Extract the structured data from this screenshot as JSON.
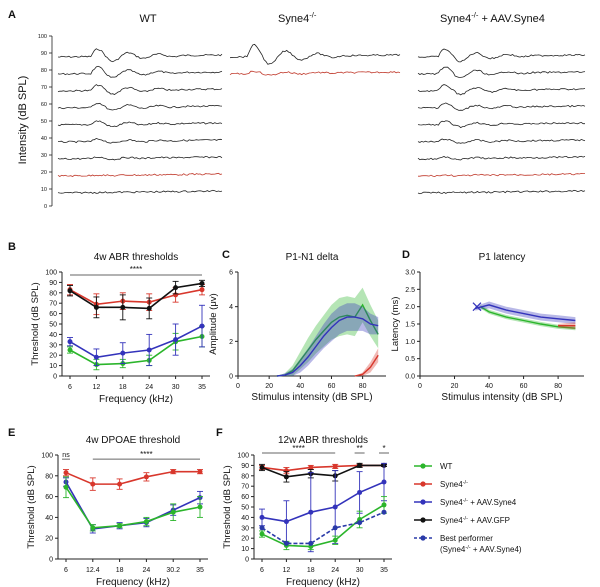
{
  "colors": {
    "wt": "#2bb52b",
    "syne4": "#d8372c",
    "aav_syne4": "#3333bb",
    "aav_gfp": "#111111",
    "best": "#2a3aa8",
    "trace": "#222222",
    "trace_red": "#c0392b"
  },
  "panel_labels": {
    "A": "A",
    "B": "B",
    "C": "C",
    "D": "D",
    "E": "E",
    "F": "F"
  },
  "panelA": {
    "col_titles": {
      "wt": "WT",
      "ko": "Syne4",
      "ko_sup": "-/-",
      "aav": "Syne4",
      "aav_sup": "-/-",
      "aav_suffix": " + AAV.Syne4"
    },
    "ylabel": "Intensity (dB SPL)",
    "ticks": [
      "100",
      "90",
      "80",
      "70",
      "60",
      "50",
      "40",
      "30",
      "20",
      "10",
      "0"
    ]
  },
  "chart_data": [
    {
      "id": "B",
      "type": "line",
      "title": "4w ABR thresholds",
      "xlabel": "Frequency (kHz)",
      "ylabel": "Threshold (dB SPL)",
      "ylim": [
        0,
        100
      ],
      "categories": [
        "6",
        "12",
        "18",
        "24",
        "30",
        "35"
      ],
      "yticks": [
        "0",
        "10",
        "20",
        "30",
        "40",
        "50",
        "60",
        "70",
        "80",
        "90",
        "100"
      ],
      "sig": "****",
      "series": [
        {
          "name": "WT",
          "color": "wt",
          "values": [
            25,
            11,
            12,
            15,
            33,
            38
          ],
          "err": [
            3,
            5,
            4,
            5,
            8,
            10
          ]
        },
        {
          "name": "Syne4-/-",
          "color": "syne4",
          "values": [
            83,
            69,
            72,
            71,
            78,
            83
          ],
          "err": [
            5,
            10,
            8,
            8,
            7,
            5
          ]
        },
        {
          "name": "Syne4-/- + AAV.GFP",
          "color": "aav_gfp",
          "values": [
            82,
            66,
            66,
            65,
            85,
            89
          ],
          "err": [
            5,
            10,
            12,
            10,
            6,
            3
          ]
        },
        {
          "name": "Syne4-/- + AAV.Syne4",
          "color": "aav_syne4",
          "values": [
            33,
            18,
            22,
            25,
            35,
            48
          ],
          "err": [
            4,
            8,
            10,
            15,
            15,
            20
          ]
        }
      ]
    },
    {
      "id": "C",
      "type": "area",
      "title": "P1-N1 delta",
      "xlabel": "Stimulus intensity (dB SPL)",
      "ylabel": "Amplitude (μv)",
      "xlim": [
        0,
        95
      ],
      "ylim": [
        0,
        6
      ],
      "xticks": [
        "0",
        "20",
        "40",
        "60",
        "80"
      ],
      "yticks": [
        "0",
        "2",
        "4",
        "6"
      ],
      "series": [
        {
          "name": "WT",
          "color": "wt",
          "x": [
            25,
            30,
            35,
            40,
            45,
            50,
            55,
            60,
            65,
            70,
            75,
            80,
            85,
            90
          ],
          "y": [
            0,
            0.05,
            0.3,
            0.9,
            1.5,
            2.1,
            2.6,
            3.1,
            3.4,
            3.5,
            3.4,
            4.1,
            3.2,
            2.4
          ],
          "band": [
            0,
            0.1,
            0.3,
            0.5,
            0.7,
            0.8,
            0.9,
            1.0,
            1.1,
            1.1,
            1.1,
            1.0,
            0.9,
            0.8
          ]
        },
        {
          "name": "Syne4-/- + AAV.Syne4",
          "color": "aav_syne4",
          "x": [
            25,
            30,
            35,
            40,
            45,
            50,
            55,
            60,
            65,
            70,
            75,
            80,
            85,
            90
          ],
          "y": [
            0,
            0.05,
            0.2,
            0.6,
            1.1,
            1.7,
            2.3,
            2.8,
            3.2,
            3.4,
            3.4,
            3.3,
            3.0,
            2.9
          ],
          "band": [
            0,
            0.1,
            0.2,
            0.4,
            0.5,
            0.6,
            0.7,
            0.8,
            0.8,
            0.8,
            0.8,
            0.7,
            0.6,
            0.5
          ]
        },
        {
          "name": "Syne4-/-",
          "color": "syne4",
          "x": [
            75,
            80,
            85,
            90
          ],
          "y": [
            0,
            0.1,
            0.5,
            1.2
          ],
          "band": [
            0,
            0.1,
            0.3,
            0.4
          ]
        }
      ]
    },
    {
      "id": "D",
      "type": "area",
      "title": "P1 latency",
      "xlabel": "Stimulus intensity (dB SPL)",
      "ylabel": "Latency (ms)",
      "xlim": [
        0,
        95
      ],
      "ylim": [
        0,
        3
      ],
      "xticks": [
        "0",
        "20",
        "40",
        "60",
        "80"
      ],
      "yticks": [
        "0.0",
        "0.5",
        "1.0",
        "1.5",
        "2.0",
        "2.5",
        "3.0"
      ],
      "series": [
        {
          "name": "WT",
          "color": "wt",
          "x": [
            35,
            40,
            50,
            60,
            70,
            80,
            90
          ],
          "y": [
            2.0,
            1.85,
            1.7,
            1.6,
            1.5,
            1.42,
            1.38
          ],
          "band": [
            0.05,
            0.06,
            0.06,
            0.06,
            0.06,
            0.06,
            0.06
          ]
        },
        {
          "name": "Syne4-/- + AAV.Syne4",
          "color": "aav_syne4",
          "x": [
            32,
            40,
            50,
            60,
            70,
            80,
            90
          ],
          "y": [
            1.95,
            2.05,
            1.9,
            1.8,
            1.7,
            1.65,
            1.6
          ],
          "band": [
            0.06,
            0.1,
            0.1,
            0.1,
            0.1,
            0.1,
            0.1
          ]
        },
        {
          "name": "Syne4-/-",
          "color": "syne4",
          "x": [
            80,
            85,
            90
          ],
          "y": [
            1.45,
            1.45,
            1.45
          ],
          "band": [
            0.05,
            0.08,
            0.1
          ]
        }
      ]
    },
    {
      "id": "E",
      "type": "line",
      "title": "4w DPOAE threshold",
      "xlabel": "Frequency (kHz)",
      "ylabel": "Threshold (dB SPL)",
      "ylim": [
        0,
        100
      ],
      "categories": [
        "6",
        "12.4",
        "18",
        "24",
        "30.2",
        "35"
      ],
      "yticks": [
        "0",
        "20",
        "40",
        "60",
        "80",
        "100"
      ],
      "sig": "****",
      "sig_ns": "ns",
      "series": [
        {
          "name": "Syne4-/-",
          "color": "syne4",
          "values": [
            83,
            72,
            72,
            79,
            84,
            84
          ],
          "err": [
            3,
            6,
            5,
            4,
            2,
            2
          ]
        },
        {
          "name": "Syne4-/- + AAV.Syne4",
          "color": "aav_syne4",
          "values": [
            74,
            29,
            32,
            35,
            47,
            59
          ],
          "err": [
            4,
            4,
            3,
            4,
            5,
            6
          ]
        },
        {
          "name": "WT",
          "color": "wt",
          "values": [
            69,
            30,
            32,
            36,
            45,
            50
          ],
          "err": [
            10,
            3,
            2,
            4,
            8,
            10
          ]
        }
      ]
    },
    {
      "id": "F",
      "type": "line",
      "title": "12w ABR thresholds",
      "xlabel": "Frequency (kHz)",
      "ylabel": "Threshold (dB SPL)",
      "ylim": [
        0,
        100
      ],
      "categories": [
        "6",
        "12",
        "18",
        "24",
        "30",
        "35"
      ],
      "yticks": [
        "0",
        "10",
        "20",
        "30",
        "40",
        "50",
        "60",
        "70",
        "80",
        "90",
        "100"
      ],
      "sig": [
        {
          "label": "****",
          "from": 0,
          "to": 3
        },
        {
          "label": "**",
          "from": 4,
          "to": 4
        },
        {
          "label": "*",
          "from": 5,
          "to": 5
        }
      ],
      "series": [
        {
          "name": "Syne4-/-",
          "color": "syne4",
          "values": [
            88,
            85,
            88,
            89,
            90,
            90
          ],
          "err": [
            2,
            3,
            2,
            2,
            1,
            1
          ]
        },
        {
          "name": "Syne4-/- + AAV.GFP",
          "color": "aav_gfp",
          "values": [
            88,
            79,
            82,
            80,
            90,
            90
          ],
          "err": [
            3,
            5,
            4,
            5,
            2,
            1
          ]
        },
        {
          "name": "Syne4-/- + AAV.Syne4",
          "color": "aav_syne4",
          "values": [
            40,
            36,
            45,
            50,
            64,
            74
          ],
          "err": [
            8,
            20,
            38,
            35,
            20,
            18
          ]
        },
        {
          "name": "WT",
          "color": "wt",
          "values": [
            24,
            13,
            12,
            18,
            38,
            52
          ],
          "err": [
            3,
            4,
            3,
            4,
            8,
            8
          ]
        },
        {
          "name": "Best performer",
          "color": "best",
          "dashed": true,
          "values": [
            30,
            15,
            15,
            30,
            35,
            45
          ],
          "err": [
            0,
            0,
            0,
            0,
            0,
            0
          ]
        }
      ]
    }
  ],
  "legend": [
    {
      "label": "WT",
      "color": "wt"
    },
    {
      "label": "Syne4",
      "sup": "-/-",
      "suffix": "",
      "color": "syne4"
    },
    {
      "label": "Syne4",
      "sup": "-/-",
      "suffix": " + AAV.Syne4",
      "color": "aav_syne4"
    },
    {
      "label": "Syne4",
      "sup": "-/-",
      "suffix": " + AAV.GFP",
      "color": "aav_gfp"
    },
    {
      "label": "Best performer",
      "line2": "(Syne4",
      "sup2": "-/-",
      "suffix2": " + AAV.Syne4)",
      "color": "best",
      "dashed": true
    }
  ]
}
